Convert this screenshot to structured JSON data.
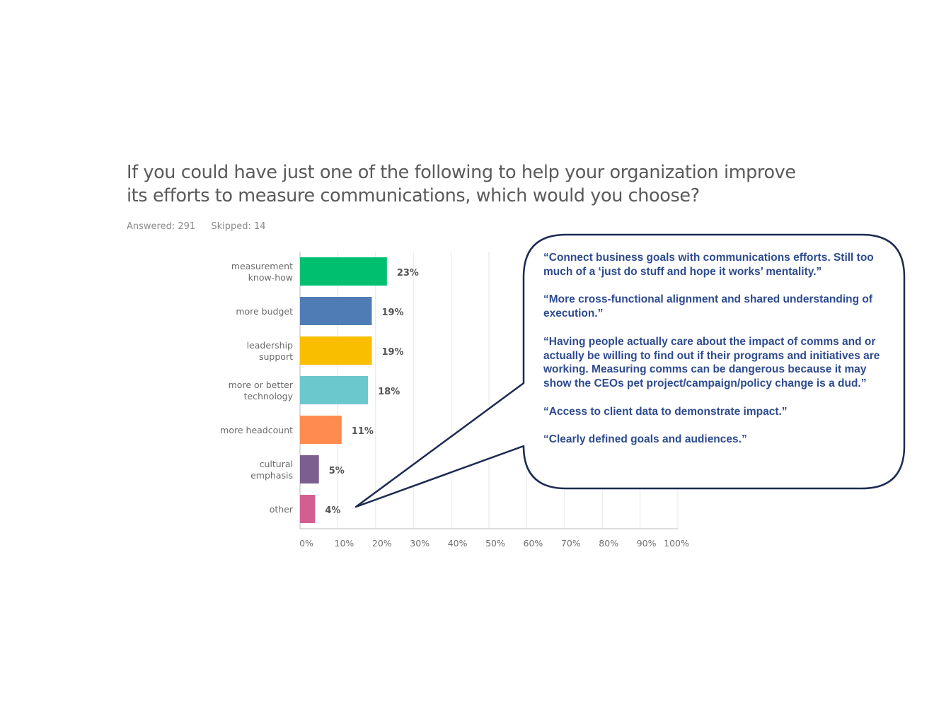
{
  "question": {
    "title_line1": "If you could have just one of the following to help your organization improve",
    "title_line2": "its efforts to measure communications, which would you choose?",
    "answered": "Answered: 291",
    "skipped": "Skipped: 14"
  },
  "chart_data": {
    "type": "bar",
    "orientation": "horizontal",
    "categories": [
      [
        "measurement",
        "know-how"
      ],
      [
        "more budget"
      ],
      [
        "leadership",
        "support"
      ],
      [
        "more or better",
        "technology"
      ],
      [
        "more headcount"
      ],
      [
        "cultural",
        "emphasis"
      ],
      [
        "other"
      ]
    ],
    "values": [
      23,
      19,
      19,
      18,
      11,
      5,
      4
    ],
    "value_labels": [
      "23%",
      "19%",
      "19%",
      "18%",
      "11%",
      "5%",
      "4%"
    ],
    "colors": [
      "#00bf6f",
      "#507cb6",
      "#f9be00",
      "#6bc8cd",
      "#ff8b4f",
      "#7d5e90",
      "#d25f90"
    ],
    "xlim": [
      0,
      100
    ],
    "xticks": [
      "0%",
      "10%",
      "20%",
      "30%",
      "40%",
      "50%",
      "60%",
      "70%",
      "80%",
      "90%",
      "100%"
    ],
    "grid": true
  },
  "callout": {
    "quotes": [
      "“Connect business goals with communications efforts. Still too much of a ‘just do stuff and hope it works’ mentality.”",
      "“More cross-functional alignment and shared understanding of execution.”",
      "“Having people actually care about the impact of comms and or actually be willing to find out if their programs and initiatives are working. Measuring comms can be dangerous because it may show the CEOs pet project/campaign/policy change is a dud.”",
      "“Access to client data to demonstrate impact.”",
      "“Clearly defined goals and audiences.”"
    ],
    "border_color": "#1c2b52",
    "text_color": "#2e4b8f"
  }
}
